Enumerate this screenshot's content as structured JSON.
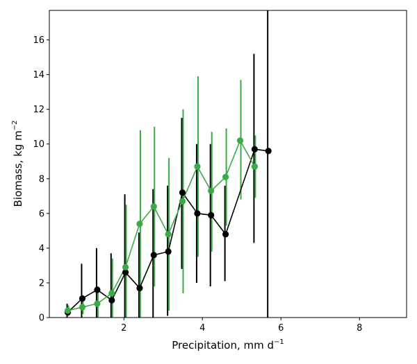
{
  "chart_data": {
    "type": "line",
    "xlabel": "Precipitation,  mm d",
    "xlabel_sup": "−1",
    "ylabel": "Biomass,  kg m",
    "ylabel_sup": "−2",
    "xlim": [
      0.1,
      9.2
    ],
    "ylim": [
      0,
      17.7
    ],
    "xticks": [
      2,
      4,
      6,
      8
    ],
    "yticks": [
      0,
      2,
      4,
      6,
      8,
      10,
      12,
      14,
      16
    ],
    "grid": false,
    "series": [
      {
        "color": "#000000",
        "points": [
          {
            "x": 0.57,
            "y": 0.3,
            "ylow": 0.0,
            "yhigh": 0.8
          },
          {
            "x": 0.94,
            "y": 1.1,
            "ylow": 0.0,
            "yhigh": 3.1
          },
          {
            "x": 1.32,
            "y": 1.6,
            "ylow": 0.0,
            "yhigh": 4.0
          },
          {
            "x": 1.69,
            "y": 1.0,
            "ylow": 0.0,
            "yhigh": 3.7
          },
          {
            "x": 2.04,
            "y": 2.6,
            "ylow": 0.0,
            "yhigh": 7.1
          },
          {
            "x": 2.4,
            "y": 1.7,
            "ylow": 0.0,
            "yhigh": 4.9
          },
          {
            "x": 2.76,
            "y": 3.6,
            "ylow": 0.0,
            "yhigh": 7.4
          },
          {
            "x": 3.13,
            "y": 3.8,
            "ylow": 0.1,
            "yhigh": 7.6
          },
          {
            "x": 3.49,
            "y": 7.2,
            "ylow": 2.8,
            "yhigh": 11.5
          },
          {
            "x": 3.87,
            "y": 6.0,
            "ylow": 2.0,
            "yhigh": 10.0
          },
          {
            "x": 4.22,
            "y": 5.9,
            "ylow": 1.8,
            "yhigh": 10.0
          },
          {
            "x": 4.59,
            "y": 4.8,
            "ylow": 2.1,
            "yhigh": 7.6
          },
          {
            "x": 5.33,
            "y": 9.7,
            "ylow": 4.3,
            "yhigh": 15.2
          },
          {
            "x": 5.68,
            "y": 9.6,
            "ylow": 0.0,
            "yhigh": 17.7
          }
        ]
      },
      {
        "color": "#3aaa48",
        "points": [
          {
            "x": 0.57,
            "y": 0.4,
            "ylow": 0.1,
            "yhigh": 0.7
          },
          {
            "x": 0.94,
            "y": 0.6,
            "ylow": 0.2,
            "yhigh": 1.1
          },
          {
            "x": 1.32,
            "y": 0.8,
            "ylow": 0.0,
            "yhigh": 1.8
          },
          {
            "x": 1.69,
            "y": 1.4,
            "ylow": 0.0,
            "yhigh": 3.4
          },
          {
            "x": 2.04,
            "y": 2.9,
            "ylow": 0.0,
            "yhigh": 6.5
          },
          {
            "x": 2.4,
            "y": 5.4,
            "ylow": 0.0,
            "yhigh": 10.8
          },
          {
            "x": 2.76,
            "y": 6.4,
            "ylow": 1.8,
            "yhigh": 11.0
          },
          {
            "x": 3.13,
            "y": 4.8,
            "ylow": 0.4,
            "yhigh": 9.2
          },
          {
            "x": 3.49,
            "y": 6.7,
            "ylow": 1.4,
            "yhigh": 12.0
          },
          {
            "x": 3.87,
            "y": 8.7,
            "ylow": 3.5,
            "yhigh": 13.9
          },
          {
            "x": 4.22,
            "y": 7.3,
            "ylow": 3.8,
            "yhigh": 10.7
          },
          {
            "x": 4.59,
            "y": 8.1,
            "ylow": 5.3,
            "yhigh": 10.9
          },
          {
            "x": 4.96,
            "y": 10.2,
            "ylow": 6.8,
            "yhigh": 13.7
          },
          {
            "x": 5.33,
            "y": 8.7,
            "ylow": 6.9,
            "yhigh": 10.5
          }
        ]
      }
    ]
  }
}
